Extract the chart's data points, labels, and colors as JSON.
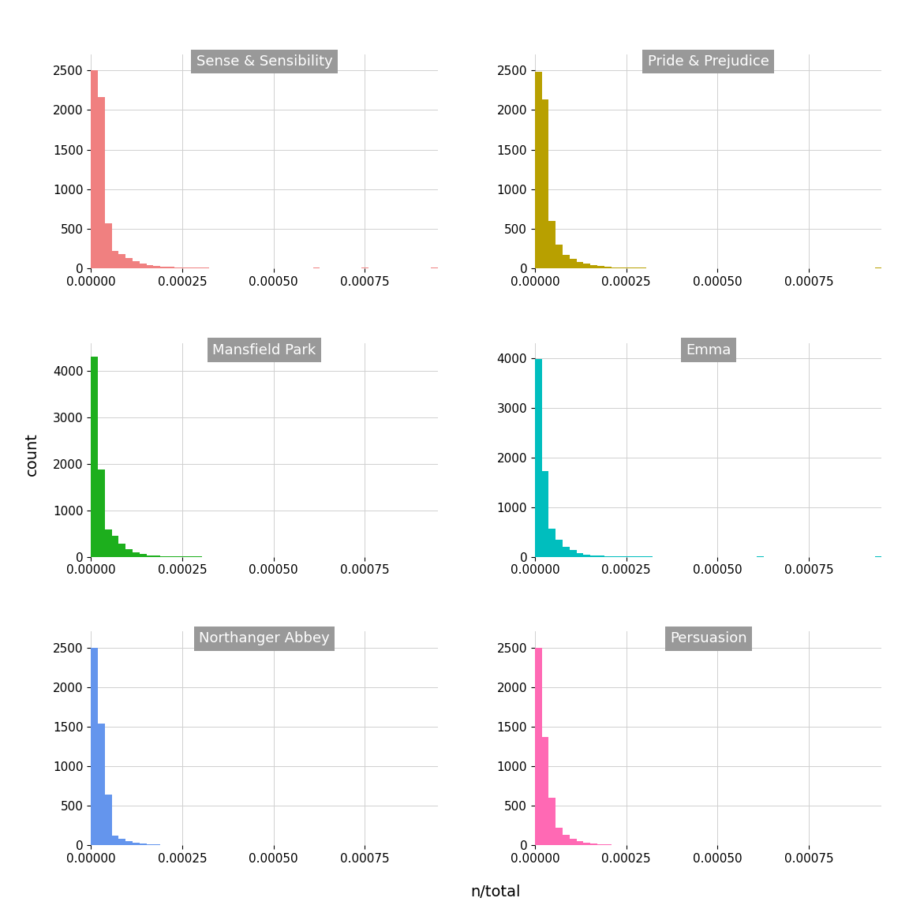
{
  "novels": [
    "Sense & Sensibility",
    "Pride & Prejudice",
    "Mansfield Park",
    "Emma",
    "Northanger Abbey",
    "Persuasion"
  ],
  "colors": [
    "#F08080",
    "#B8A000",
    "#1DAF1D",
    "#00BEBE",
    "#6495ED",
    "#FF69B4"
  ],
  "xlabel": "n/total",
  "ylabel": "count",
  "xlim": [
    0.0,
    0.00095
  ],
  "xticks": [
    0.0,
    0.00025,
    0.0005,
    0.00075
  ],
  "xticklabels": [
    "0.00000",
    "0.00025",
    "0.00050",
    "0.00075"
  ],
  "background_color": "#ffffff",
  "panel_bg": "#ffffff",
  "grid_color": "#d0d0d0",
  "title_bg": "#999999",
  "title_color": "#ffffff",
  "title_fontsize": 13,
  "ylabel_fontsize": 14,
  "xlabel_fontsize": 14,
  "tick_fontsize": 11,
  "num_bins": 50,
  "bin_max": 0.00095,
  "novel_yticks": {
    "Sense & Sensibility": [
      0,
      500,
      1000,
      1500,
      2000,
      2500
    ],
    "Pride & Prejudice": [
      0,
      500,
      1000,
      1500,
      2000,
      2500
    ],
    "Mansfield Park": [
      0,
      1000,
      2000,
      3000,
      4000
    ],
    "Emma": [
      0,
      1000,
      2000,
      3000,
      4000
    ],
    "Northanger Abbey": [
      0,
      500,
      1000,
      1500,
      2000,
      2500
    ],
    "Persuasion": [
      0,
      500,
      1000,
      1500,
      2000,
      2500
    ]
  },
  "novel_ylim": {
    "Sense & Sensibility": [
      0,
      2700
    ],
    "Pride & Prejudice": [
      0,
      2700
    ],
    "Mansfield Park": [
      0,
      4600
    ],
    "Emma": [
      0,
      4300
    ],
    "Northanger Abbey": [
      0,
      2700
    ],
    "Persuasion": [
      0,
      2700
    ]
  },
  "novel_params": {
    "Sense & Sensibility": {
      "bar_heights": [
        2500,
        2160,
        570,
        220,
        180,
        130,
        90,
        60,
        40,
        30,
        20,
        15,
        12,
        10,
        8,
        6,
        5,
        4,
        3,
        3,
        2,
        2,
        1,
        1,
        1,
        1,
        1,
        0,
        0,
        0,
        0,
        0,
        5,
        0,
        0,
        0,
        0,
        0,
        0,
        5,
        0,
        0,
        0,
        0,
        0,
        0,
        0,
        0,
        0,
        5
      ]
    },
    "Pride & Prejudice": {
      "bar_heights": [
        2480,
        2130,
        600,
        300,
        170,
        115,
        80,
        55,
        35,
        25,
        18,
        12,
        10,
        8,
        6,
        5,
        4,
        3,
        3,
        2,
        2,
        1,
        1,
        1,
        1,
        1,
        0,
        0,
        0,
        0,
        0,
        0,
        3,
        0,
        0,
        0,
        0,
        0,
        0,
        0,
        0,
        0,
        0,
        0,
        0,
        0,
        0,
        0,
        0,
        5
      ]
    },
    "Mansfield Park": {
      "bar_heights": [
        4300,
        1880,
        590,
        460,
        280,
        170,
        100,
        60,
        35,
        25,
        18,
        12,
        8,
        6,
        5,
        4,
        3,
        3,
        2,
        2,
        1,
        1,
        1,
        1,
        0,
        0,
        0,
        0,
        0,
        0,
        0,
        0,
        3,
        0,
        0,
        0,
        0,
        0,
        0,
        0,
        0,
        0,
        0,
        0,
        0,
        0,
        0,
        0,
        0,
        0
      ]
    },
    "Emma": {
      "bar_heights": [
        3980,
        1720,
        570,
        350,
        200,
        130,
        80,
        50,
        30,
        22,
        15,
        10,
        8,
        6,
        5,
        4,
        3,
        2,
        2,
        2,
        1,
        1,
        1,
        1,
        0,
        0,
        0,
        0,
        0,
        0,
        0,
        0,
        3,
        0,
        0,
        0,
        0,
        0,
        0,
        0,
        0,
        0,
        0,
        0,
        0,
        0,
        0,
        0,
        0,
        5
      ]
    },
    "Northanger Abbey": {
      "bar_heights": [
        2500,
        1540,
        640,
        120,
        80,
        55,
        35,
        20,
        15,
        10,
        7,
        5,
        4,
        3,
        2,
        2,
        1,
        1,
        1,
        1,
        1,
        0,
        0,
        0,
        0,
        0,
        1,
        1,
        1,
        1,
        0,
        0,
        1,
        1,
        0,
        1,
        0,
        0,
        0,
        0,
        0,
        0,
        0,
        0,
        0,
        0,
        0,
        0,
        0,
        3
      ]
    },
    "Persuasion": {
      "bar_heights": [
        2500,
        1370,
        600,
        220,
        130,
        80,
        50,
        30,
        20,
        14,
        10,
        7,
        5,
        4,
        3,
        2,
        2,
        1,
        1,
        1,
        1,
        0,
        0,
        0,
        0,
        0,
        0,
        0,
        0,
        0,
        0,
        0,
        3,
        0,
        0,
        0,
        0,
        0,
        0,
        0,
        0,
        0,
        0,
        0,
        0,
        0,
        0,
        0,
        0,
        3
      ]
    }
  }
}
